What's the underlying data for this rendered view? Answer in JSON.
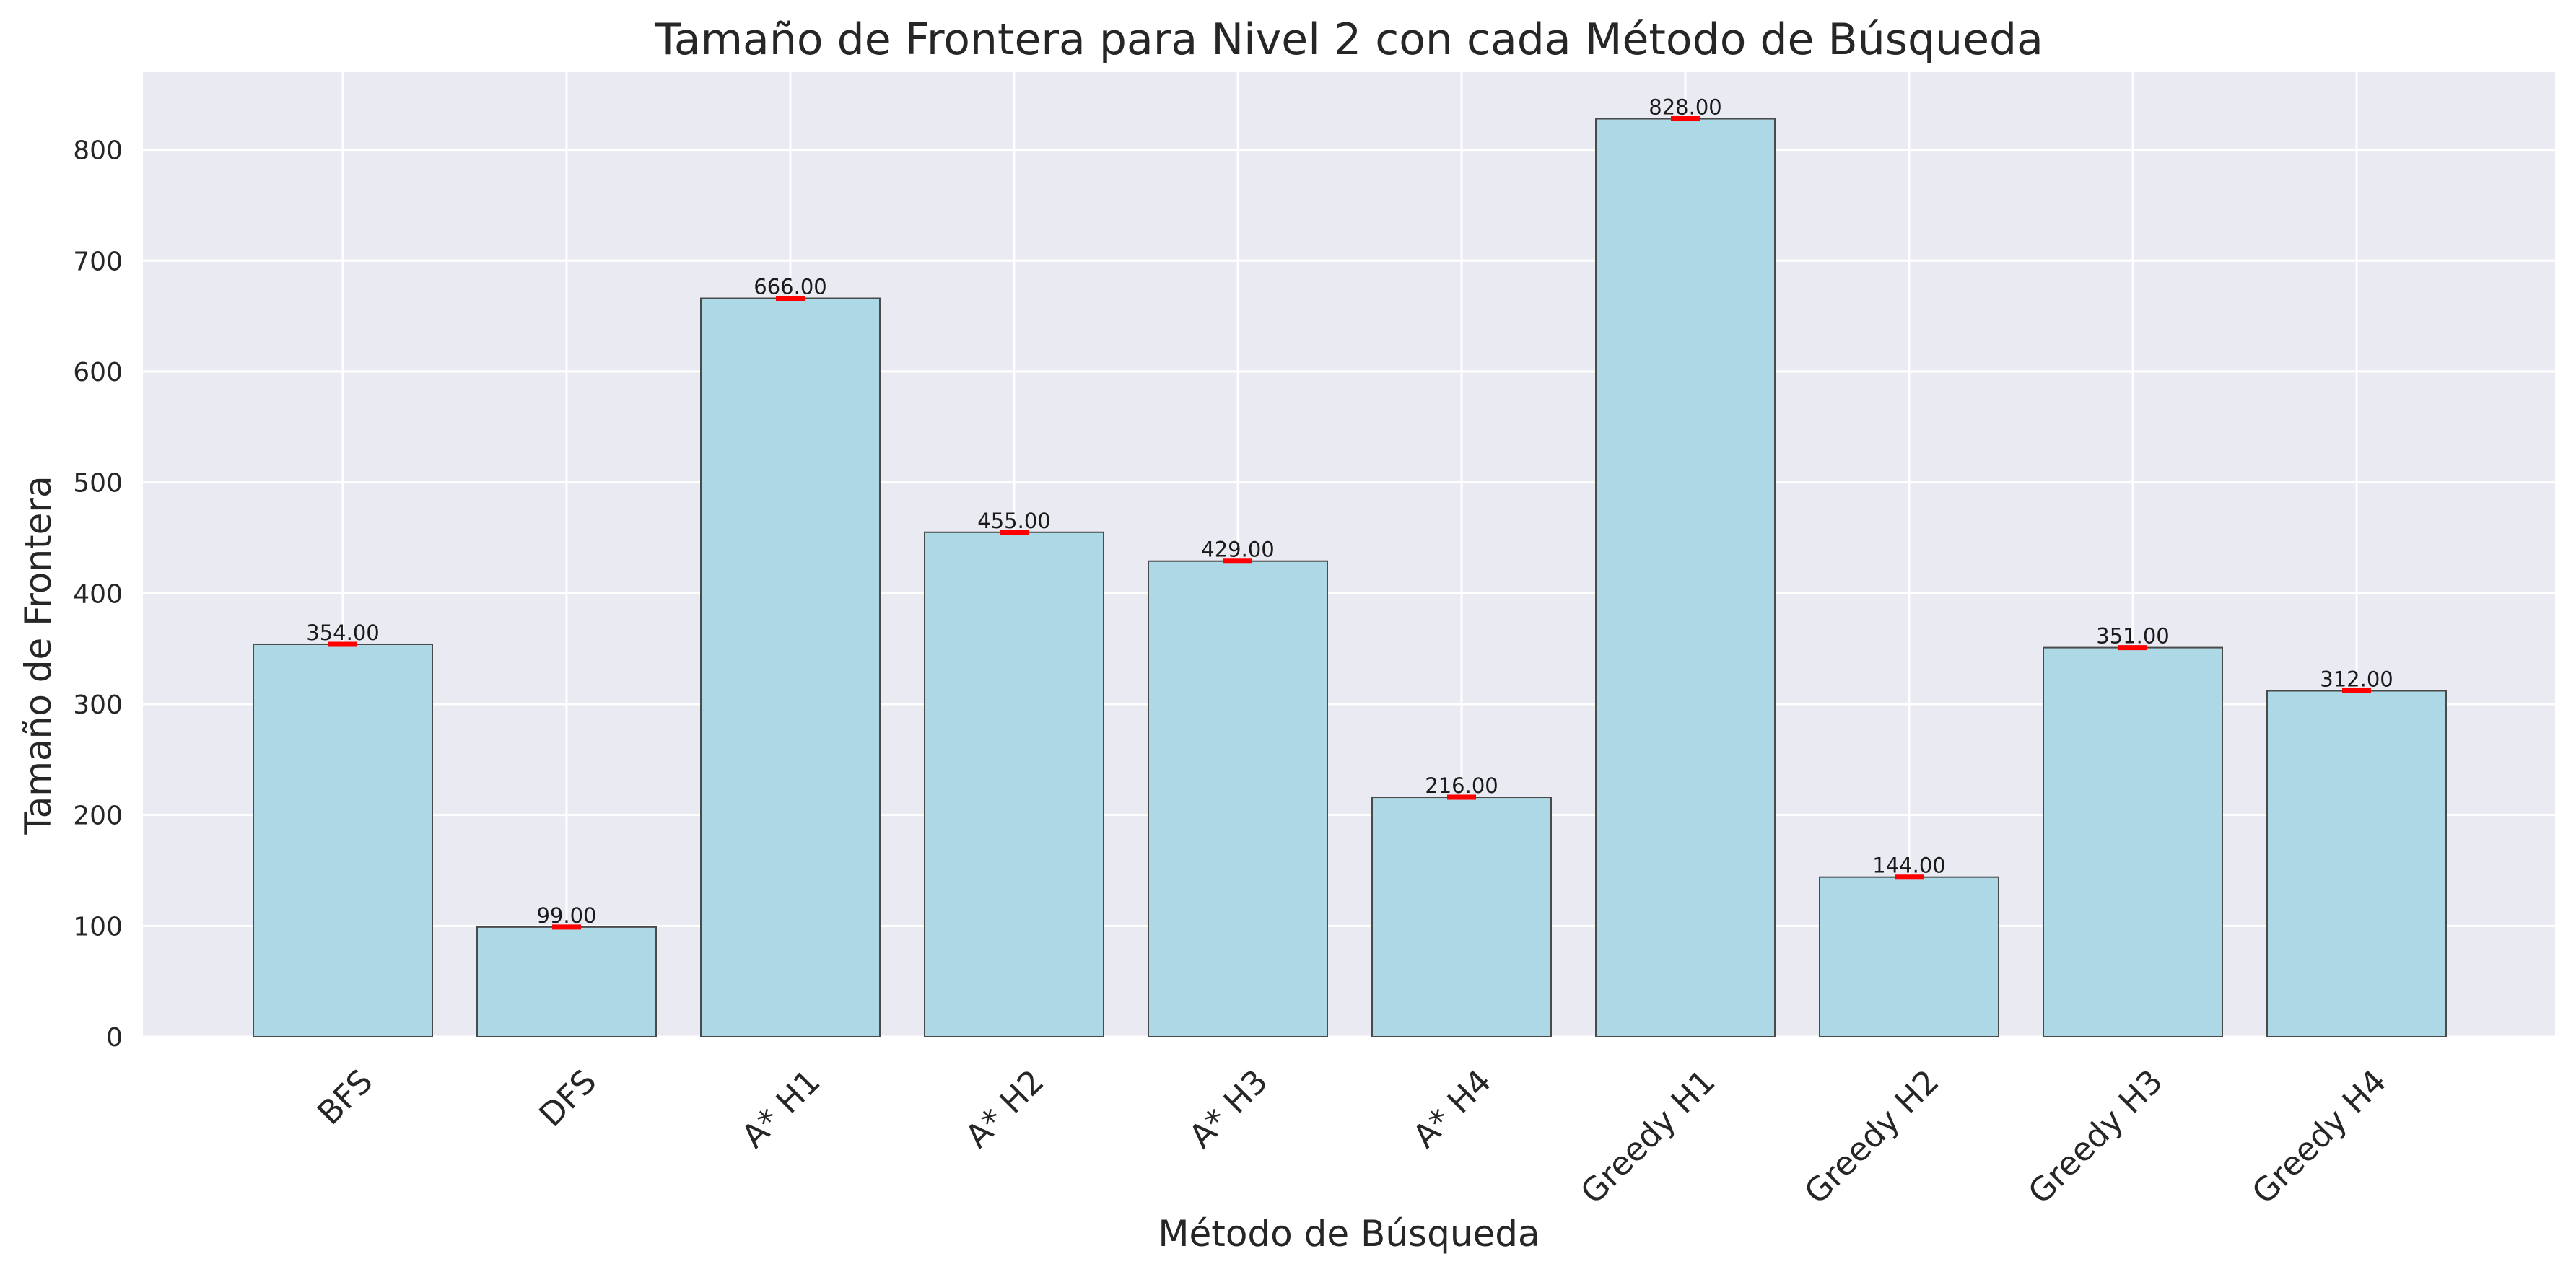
{
  "chart_data": {
    "type": "bar",
    "title": "Tamaño de Frontera  para Nivel 2 con cada Método de Búsqueda",
    "xlabel": "Método de Búsqueda",
    "ylabel": "Tamaño de Frontera",
    "categories": [
      "BFS",
      "DFS",
      "A* H1",
      "A* H2",
      "A* H3",
      "A* H4",
      "Greedy H1",
      "Greedy H2",
      "Greedy H3",
      "Greedy H4"
    ],
    "values": [
      354,
      99,
      666,
      455,
      429,
      216,
      828,
      144,
      351,
      312
    ],
    "value_labels": [
      "354.00",
      "99.00",
      "666.00",
      "455.00",
      "429.00",
      "216.00",
      "828.00",
      "144.00",
      "351.00",
      "312.00"
    ],
    "ylim": [
      0,
      870
    ],
    "yticks": [
      0,
      100,
      200,
      300,
      400,
      500,
      600,
      700,
      800
    ],
    "grid": true,
    "colors": {
      "background": "#eaeaf2",
      "bar_fill": "#add8e6",
      "bar_edge": "#4a4a4a",
      "error_marker": "#ff0000",
      "grid": "#ffffff"
    }
  }
}
